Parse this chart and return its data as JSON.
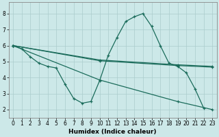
{
  "bg_color": "#cce8e8",
  "grid_color": "#aacccc",
  "line_color": "#1a6b5a",
  "xlabel": "Humidex (Indice chaleur)",
  "xlim": [
    -0.5,
    23.5
  ],
  "ylim": [
    1.5,
    8.7
  ],
  "yticks": [
    2,
    3,
    4,
    5,
    6,
    7,
    8
  ],
  "xticks": [
    0,
    1,
    2,
    3,
    4,
    5,
    6,
    7,
    8,
    9,
    10,
    11,
    12,
    13,
    14,
    15,
    16,
    17,
    18,
    19,
    20,
    21,
    22,
    23
  ],
  "series": [
    {
      "x": [
        0,
        1,
        2,
        3,
        4,
        5,
        6,
        7,
        8,
        9,
        10,
        11,
        12,
        13,
        14,
        15,
        16,
        17,
        18,
        19,
        20,
        21,
        22
      ],
      "y": [
        6.0,
        5.8,
        5.3,
        4.9,
        4.7,
        4.6,
        3.6,
        2.7,
        2.4,
        2.5,
        3.8,
        5.4,
        6.5,
        7.5,
        7.8,
        8.0,
        7.2,
        6.0,
        4.9,
        4.7,
        4.3,
        3.3,
        2.1
      ]
    },
    {
      "x": [
        0,
        10,
        19,
        23
      ],
      "y": [
        6.0,
        3.85,
        2.5,
        2.0
      ]
    },
    {
      "x": [
        0,
        10,
        19,
        23
      ],
      "y": [
        6.0,
        5.05,
        4.75,
        4.65
      ]
    },
    {
      "x": [
        0,
        10,
        19,
        23
      ],
      "y": [
        6.0,
        5.1,
        4.8,
        4.7
      ]
    }
  ]
}
